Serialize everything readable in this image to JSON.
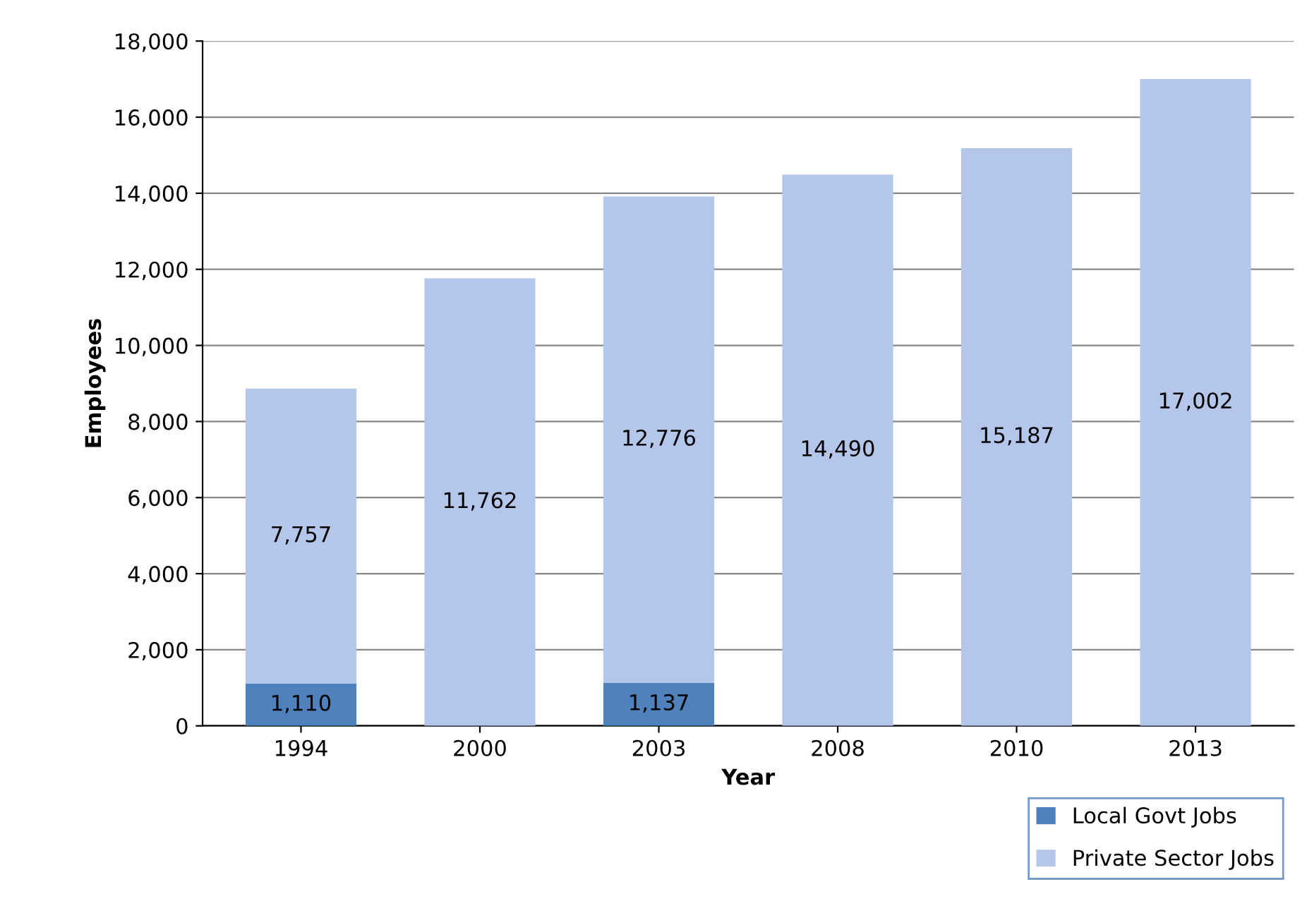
{
  "chart_data": {
    "type": "bar",
    "stacked": true,
    "xlabel": "Year",
    "ylabel": "Employees",
    "categories": [
      "1994",
      "2000",
      "2003",
      "2008",
      "2010",
      "2013"
    ],
    "series": [
      {
        "name": "Local Govt Jobs",
        "color": "#4f81bd",
        "values": [
          1110,
          null,
          1137,
          null,
          null,
          null
        ],
        "value_labels": [
          "1,110",
          null,
          "1,137",
          null,
          null,
          null
        ]
      },
      {
        "name": "Private Sector Jobs",
        "color": "#b4c6ea",
        "values": [
          7757,
          11762,
          12776,
          14490,
          15187,
          17002
        ],
        "value_labels": [
          "7,757",
          "11,762",
          "12,776",
          "14,490",
          "15,187",
          "17,002"
        ]
      }
    ],
    "ylim": [
      0,
      18000
    ],
    "yticks": [
      {
        "value": 0,
        "label": "0"
      },
      {
        "value": 2000,
        "label": "2,000"
      },
      {
        "value": 4000,
        "label": "4,000"
      },
      {
        "value": 6000,
        "label": "6,000"
      },
      {
        "value": 8000,
        "label": "8,000"
      },
      {
        "value": 10000,
        "label": "10,000"
      },
      {
        "value": 12000,
        "label": "12,000"
      },
      {
        "value": 14000,
        "label": "14,000"
      },
      {
        "value": 16000,
        "label": "16,000"
      },
      {
        "value": 18000,
        "label": "18,000"
      }
    ],
    "grid": "y",
    "legend": "bottom right"
  }
}
